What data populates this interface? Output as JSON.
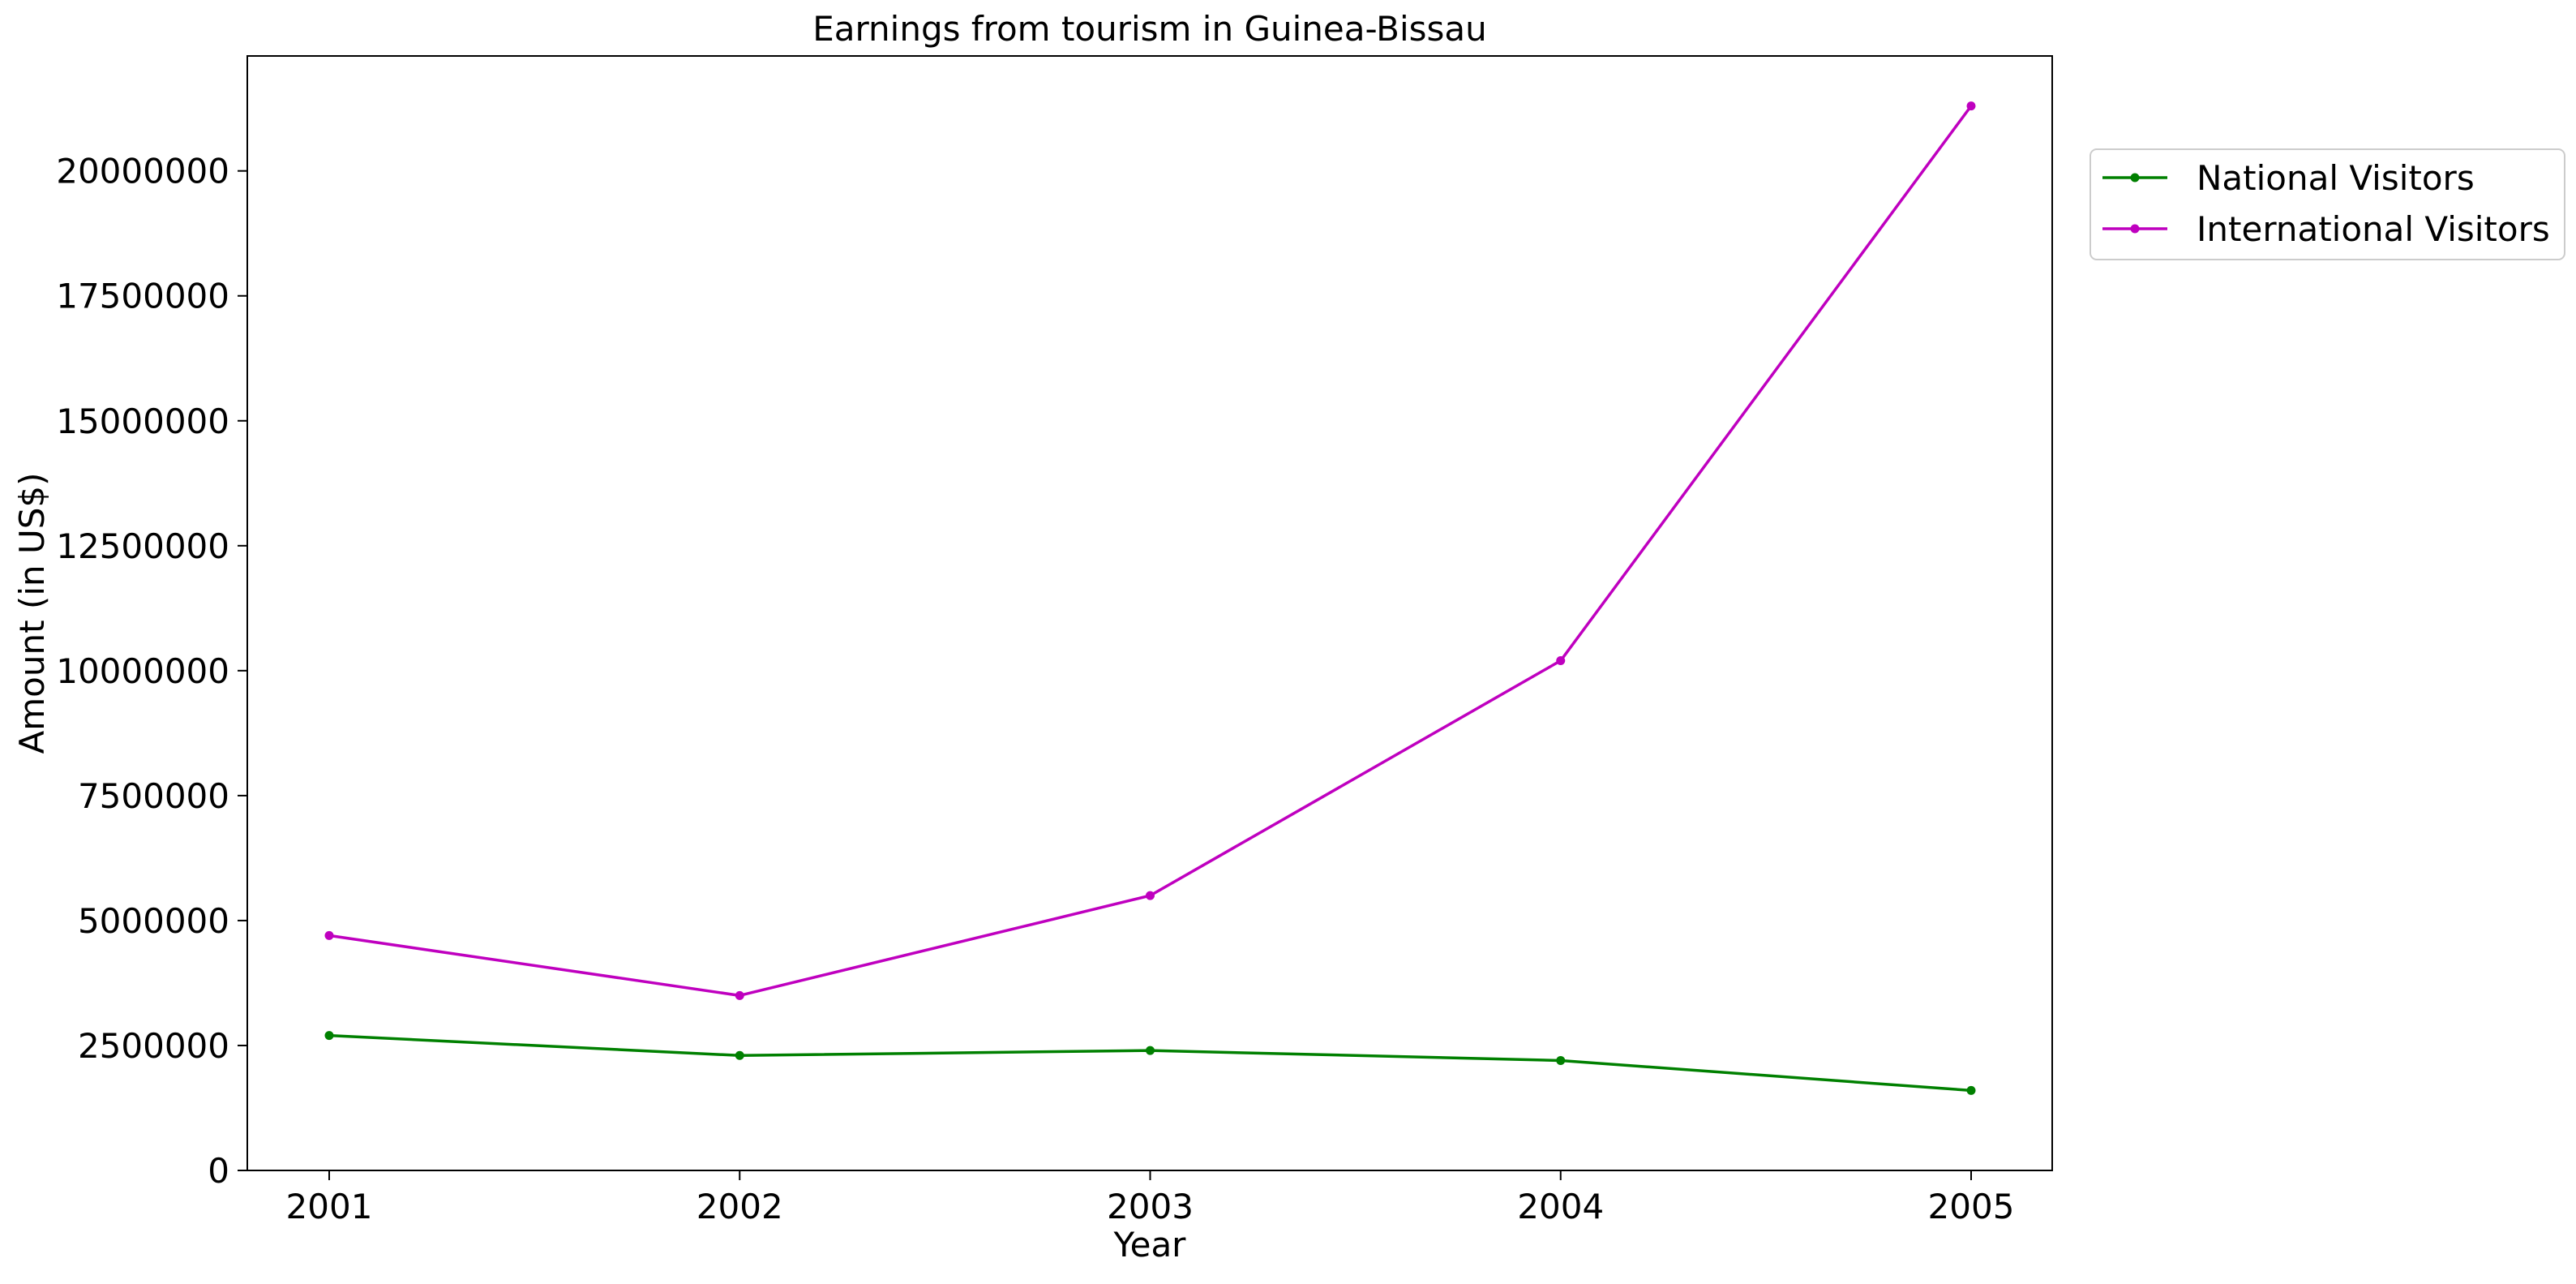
{
  "chart_data": {
    "type": "line",
    "title": "Earnings from tourism in Guinea-Bissau",
    "xlabel": "Year",
    "ylabel": "Amount (in US$)",
    "x": [
      "2001",
      "2002",
      "2003",
      "2004",
      "2005"
    ],
    "ylim": [
      0,
      22300000
    ],
    "yticks": [
      0,
      2500000,
      5000000,
      7500000,
      10000000,
      12500000,
      15000000,
      17500000,
      20000000
    ],
    "ytick_labels": [
      "0",
      "2500000",
      "5000000",
      "7500000",
      "10000000",
      "12500000",
      "15000000",
      "17500000",
      "20000000"
    ],
    "series": [
      {
        "name": "National Visitors",
        "color": "#008000",
        "marker": "circle",
        "values": [
          2700000,
          2300000,
          2400000,
          2200000,
          1600000
        ]
      },
      {
        "name": "International Visitors",
        "color": "#bf00bf",
        "marker": "circle",
        "values": [
          4700000,
          3500000,
          5500000,
          10200000,
          21300000
        ]
      }
    ],
    "grid": false,
    "legend": "outside-top-right"
  }
}
